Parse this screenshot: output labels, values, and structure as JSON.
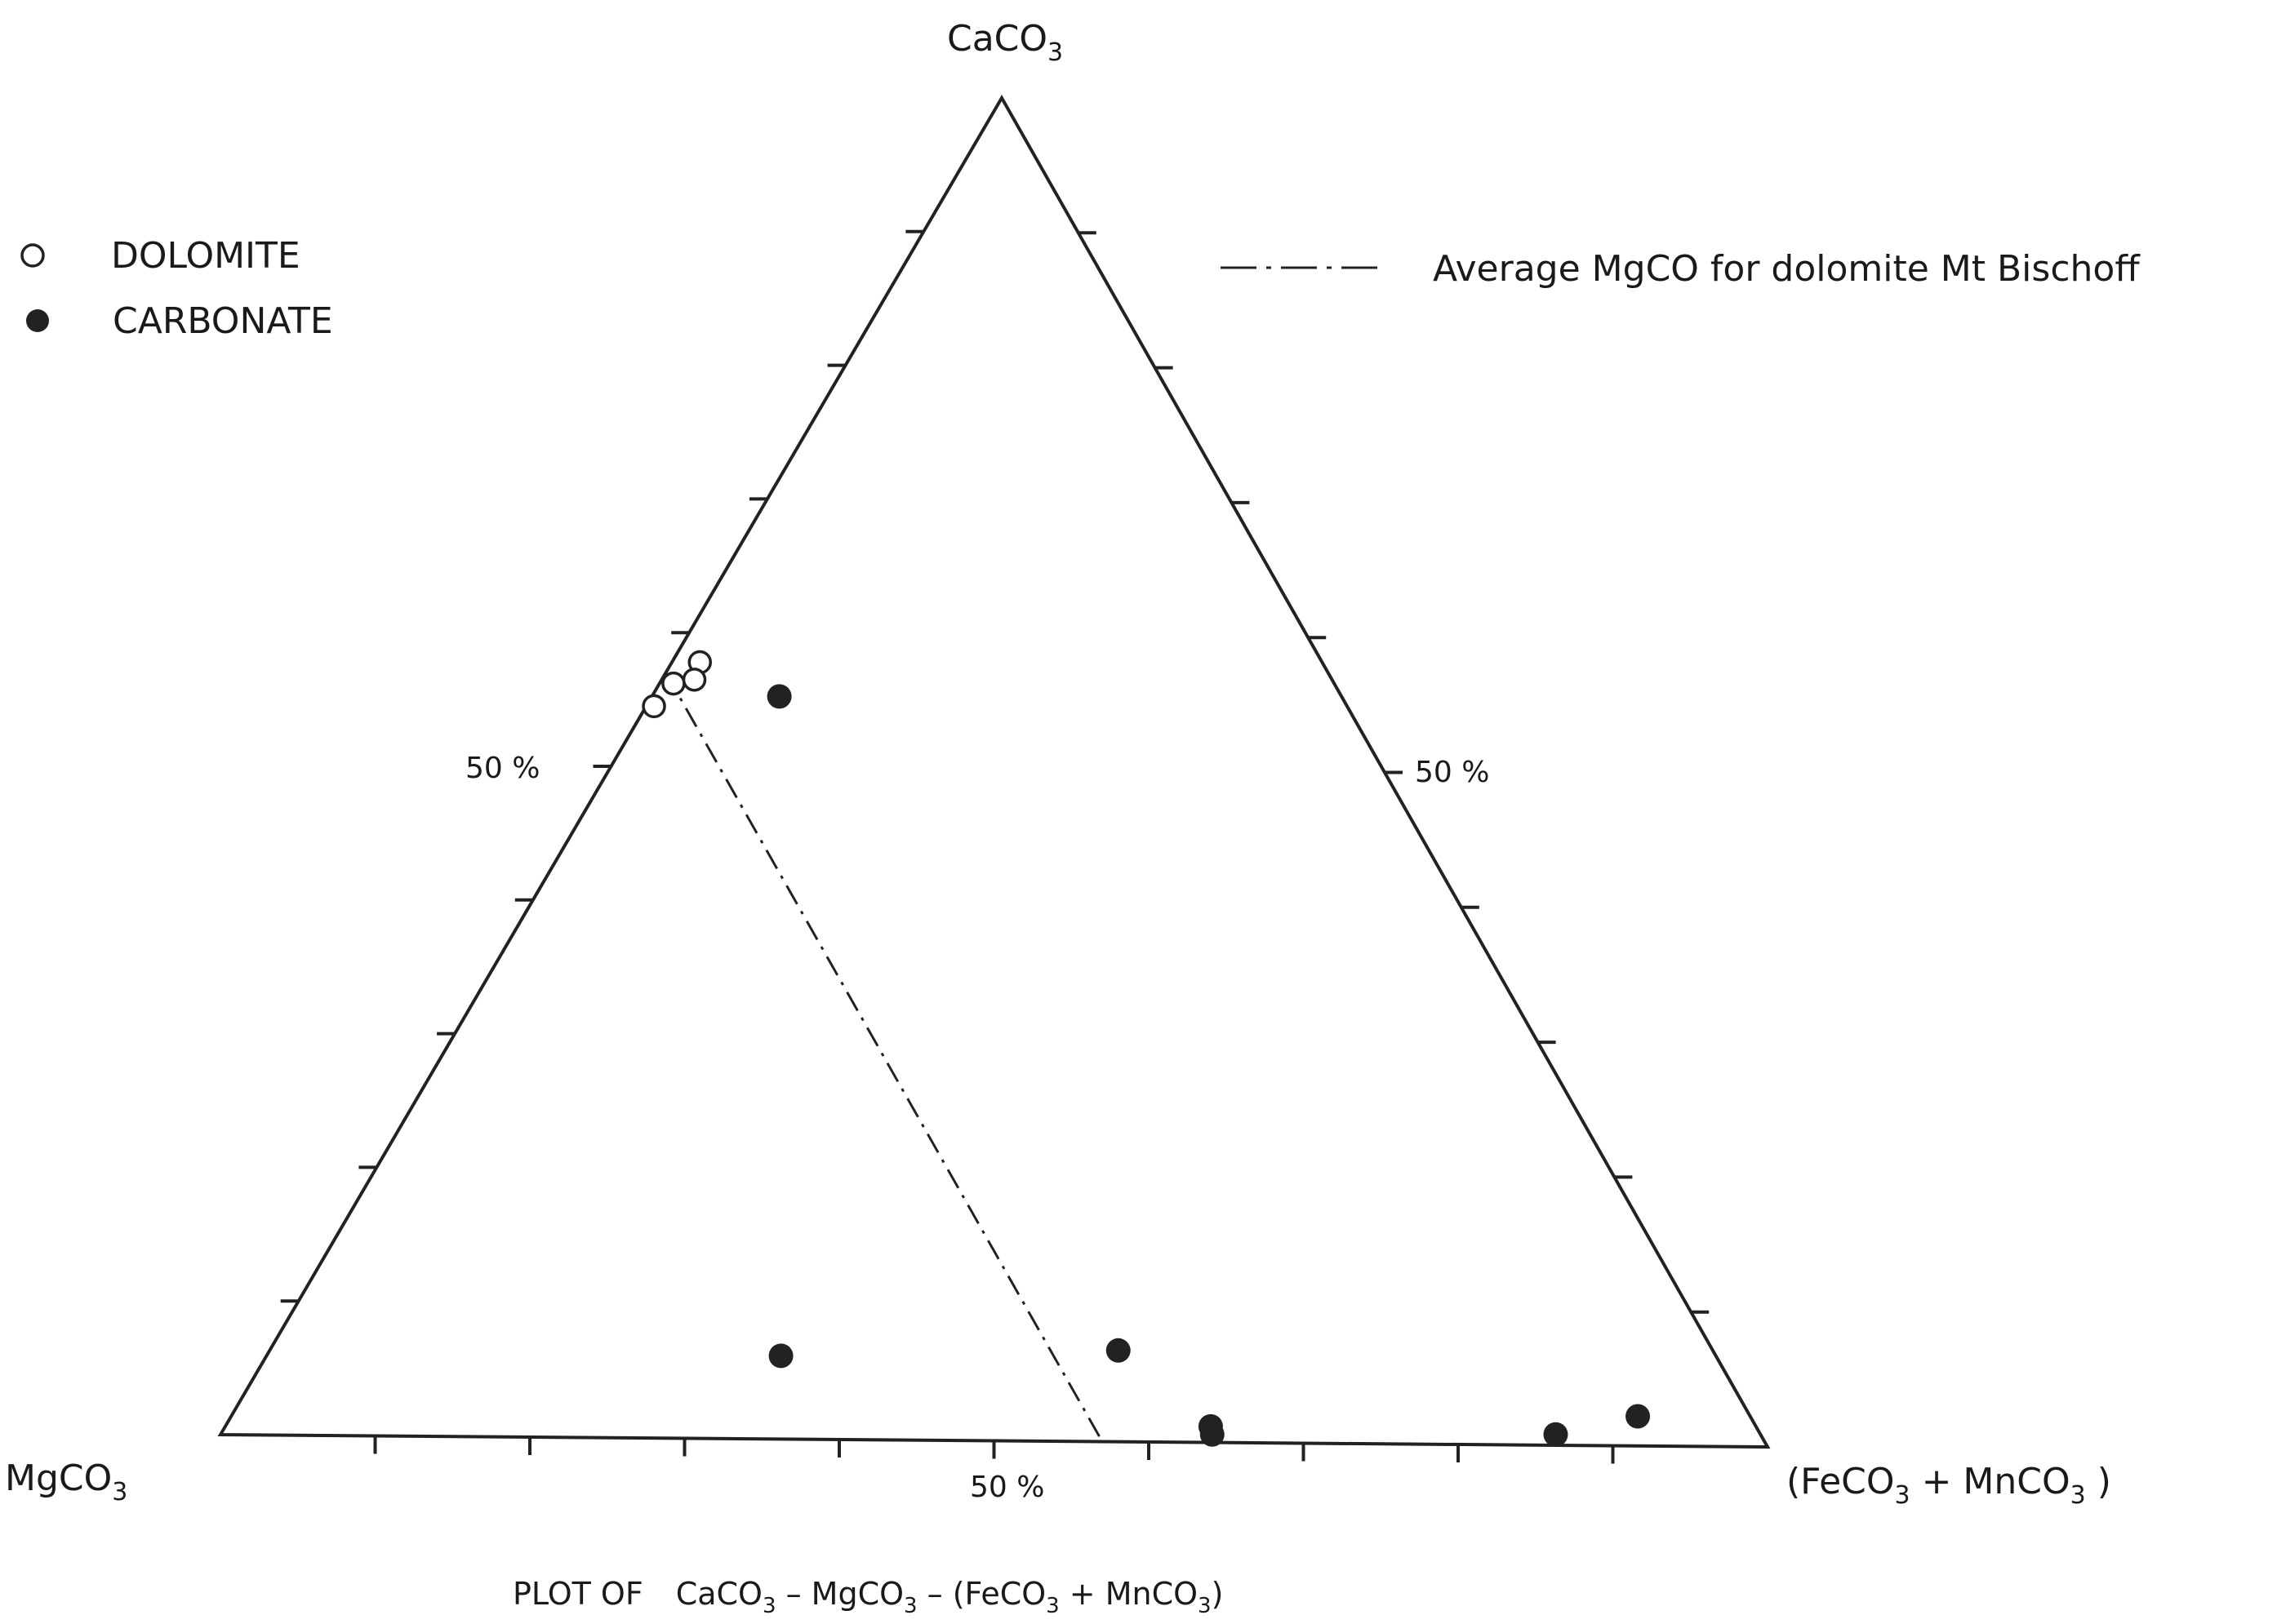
{
  "chart_data": {
    "type": "scatter",
    "subtype": "ternary",
    "title": "PLOT OF CaCO3 - MgCO3 - (FeCO3 + MnCO3)",
    "title_parts": [
      "PLOT OF",
      "CaCO",
      "3",
      " – MgCO",
      "3",
      " – (FeCO",
      "3",
      " + MnCO",
      "3",
      ")"
    ],
    "vertices": {
      "top": {
        "base": "CaCO",
        "sub": "3"
      },
      "left": {
        "base": "MgCO",
        "sub": "3"
      },
      "right": {
        "parts": [
          "(FeCO",
          "3",
          " + MnCO",
          "3",
          " )"
        ]
      }
    },
    "tick_labels": {
      "left_side": "50 %",
      "right_side": "50 %",
      "bottom_side": "50 %"
    },
    "ticks_per_side": 10,
    "legend": [
      {
        "symbol": "○",
        "label": "DOLOMITE",
        "style": "open"
      },
      {
        "symbol": "●",
        "label": "CARBONATE",
        "style": "filled"
      }
    ],
    "reference_line": {
      "label": "Average MgCO for dolomite Mt Bischoff",
      "style": "dash-dot",
      "CaCO3": [
        57,
        0
      ]
    },
    "series": [
      {
        "name": "DOLOMITE",
        "style": "open",
        "points": [
          {
            "CaCO3": 54.5,
            "MgCO3": 45.0,
            "FeMn": 0.5
          },
          {
            "CaCO3": 56.2,
            "MgCO3": 42.9,
            "FeMn": 0.9
          },
          {
            "CaCO3": 57.8,
            "MgCO3": 40.4,
            "FeMn": 1.8
          },
          {
            "CaCO3": 56.5,
            "MgCO3": 41.4,
            "FeMn": 2.1
          }
        ]
      },
      {
        "name": "CARBONATE",
        "style": "filled",
        "points": [
          {
            "CaCO3": 55.3,
            "MgCO3": 36.5,
            "FeMn": 8.2
          },
          {
            "CaCO3": 6.2,
            "MgCO3": 60.7,
            "FeMn": 33.1
          },
          {
            "CaCO3": 6.8,
            "MgCO3": 38.6,
            "FeMn": 54.6
          },
          {
            "CaCO3": 1.2,
            "MgCO3": 35.4,
            "FeMn": 63.4
          },
          {
            "CaCO3": 0.6,
            "MgCO3": 35.6,
            "FeMn": 63.8
          },
          {
            "CaCO3": 0.8,
            "MgCO3": 13.3,
            "FeMn": 85.9
          },
          {
            "CaCO3": 2.2,
            "MgCO3": 7.3,
            "FeMn": 90.5
          }
        ]
      }
    ]
  }
}
